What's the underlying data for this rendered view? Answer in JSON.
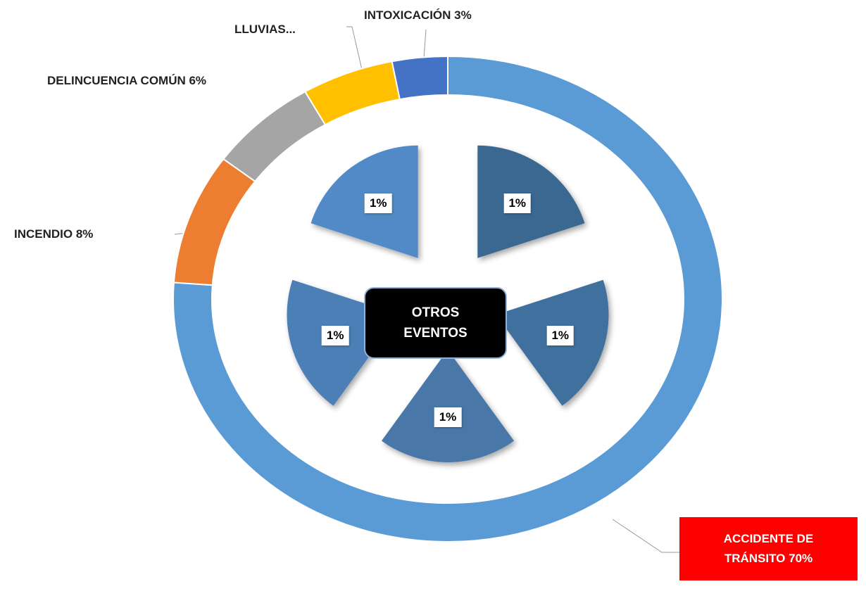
{
  "chart_data": [
    {
      "type": "donut",
      "labels": [
        "ACCIDENTE DE TRÁNSITO 70%",
        "INCENDIO 8%",
        "DELINCUENCIA COMÚN 6%",
        "LLUVIAS...",
        "INTOXICACIÓN 3%"
      ],
      "values": [
        70,
        8,
        6,
        5,
        3
      ],
      "colors": [
        "#5b9bd5",
        "#ed7d31",
        "#a5a5a5",
        "#ffc000",
        "#4472c4"
      ]
    },
    {
      "type": "exploded_pie",
      "title": "OTROS EVENTOS",
      "values": [
        1,
        1,
        1,
        1,
        1
      ],
      "value_labels": [
        "1%",
        "1%",
        "1%",
        "1%",
        "1%"
      ],
      "colors": [
        "#3b6791",
        "#41709d",
        "#4878a8",
        "#4b7fb6",
        "#518ac6"
      ]
    }
  ]
}
